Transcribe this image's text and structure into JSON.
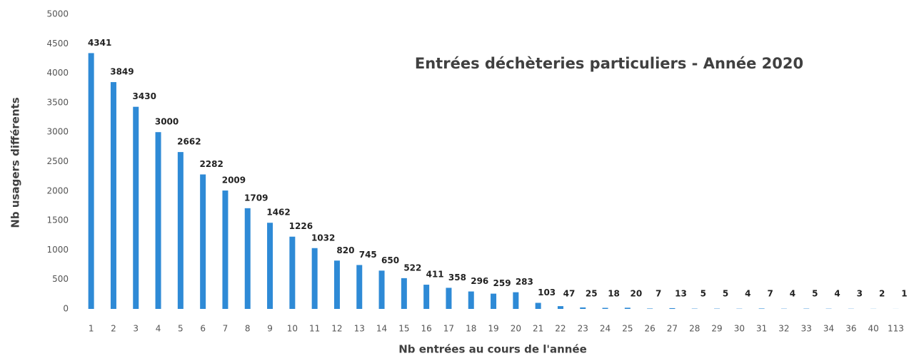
{
  "chart_data": {
    "type": "bar",
    "title": "Entrées déchèteries particuliers - Année 2020",
    "x_label": "Nb entrées au cours de l'année",
    "y_label": "Nb usagers différents",
    "categories": [
      "1",
      "2",
      "3",
      "4",
      "5",
      "6",
      "7",
      "8",
      "9",
      "10",
      "11",
      "12",
      "13",
      "14",
      "15",
      "16",
      "17",
      "18",
      "19",
      "20",
      "21",
      "22",
      "23",
      "24",
      "25",
      "26",
      "27",
      "28",
      "29",
      "30",
      "31",
      "32",
      "33",
      "34",
      "36",
      "40",
      "113"
    ],
    "values": [
      4341,
      3849,
      3430,
      3000,
      2662,
      2282,
      2009,
      1709,
      1462,
      1226,
      1032,
      820,
      745,
      650,
      522,
      411,
      358,
      296,
      259,
      283,
      103,
      47,
      25,
      18,
      20,
      7,
      13,
      5,
      5,
      4,
      7,
      4,
      5,
      4,
      3,
      2,
      1
    ],
    "color": "#2e8ad6",
    "ylim": [
      0,
      5000
    ],
    "yticks": [
      0,
      500,
      1000,
      1500,
      2000,
      2500,
      3000,
      3500,
      4000,
      4500,
      5000
    ],
    "grid": false
  }
}
